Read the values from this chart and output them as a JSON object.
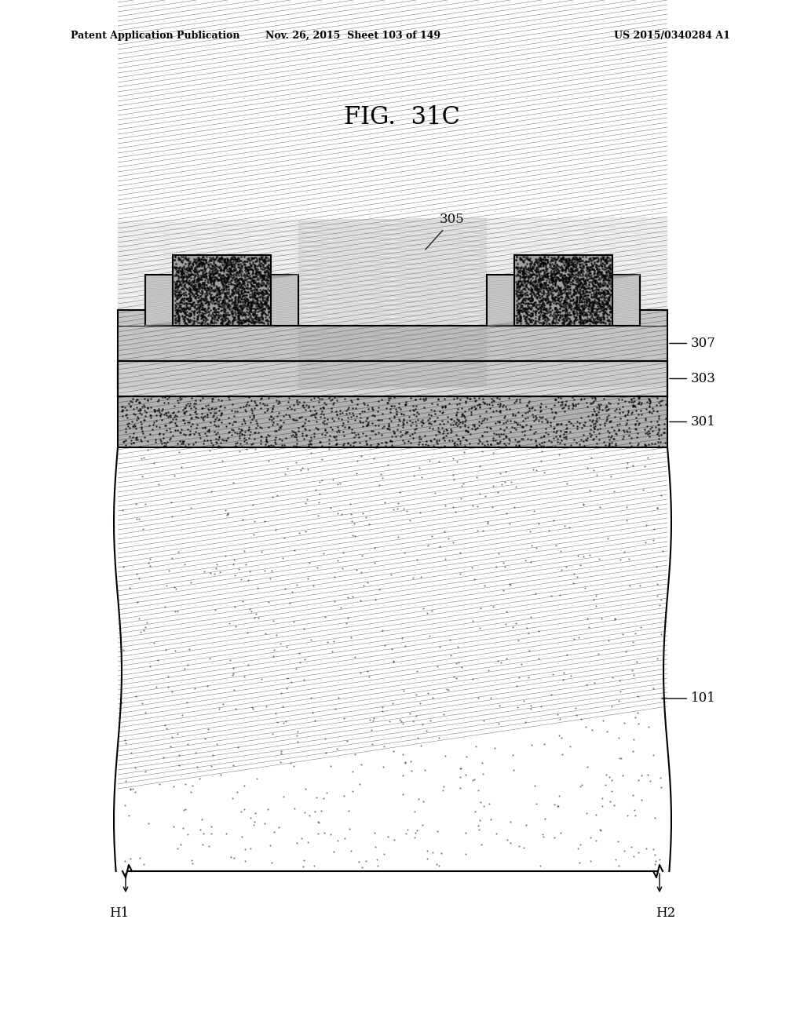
{
  "title": "FIG.  31C",
  "header_left": "Patent Application Publication",
  "header_middle": "Nov. 26, 2015  Sheet 103 of 149",
  "header_right": "US 2015/0340284 A1",
  "fig_title": "FIG.  31C",
  "background_color": "#ffffff",
  "label_305": "305",
  "label_307": "307",
  "label_303": "303",
  "label_301": "301",
  "label_101": "101",
  "label_H1": "H1",
  "label_H2": "H2"
}
